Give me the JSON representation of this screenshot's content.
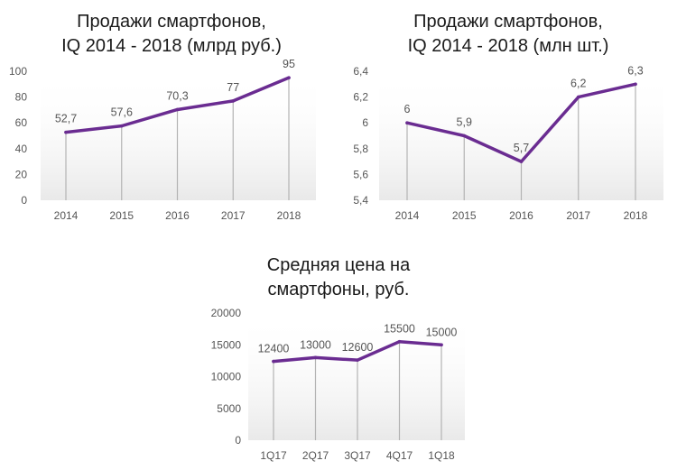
{
  "colors": {
    "line": "#6a2c91",
    "drop_line": "#b3b3b3",
    "shade": "#ececec",
    "text": "#555555",
    "title": "#1a1a1a"
  },
  "chart_data": [
    {
      "type": "line",
      "title_lines": [
        "Продажи смартфонов,",
        "IQ 2014 - 2018 (млрд руб.)"
      ],
      "categories": [
        "2014",
        "2015",
        "2016",
        "2017",
        "2018"
      ],
      "values": [
        52.7,
        57.6,
        70.3,
        77,
        95
      ],
      "data_labels": [
        "52,7",
        "57,6",
        "70,3",
        "77",
        "95"
      ],
      "ylim": [
        0,
        100
      ],
      "yticks": [
        0,
        20,
        40,
        60,
        80,
        100
      ],
      "ytick_labels": [
        "0",
        "20",
        "40",
        "60",
        "80",
        "100"
      ],
      "grid": false,
      "drop_lines": true
    },
    {
      "type": "line",
      "title_lines": [
        "Продажи смартфонов,",
        "IQ 2014 - 2018 (млн шт.)"
      ],
      "categories": [
        "2014",
        "2015",
        "2016",
        "2017",
        "2018"
      ],
      "values": [
        6,
        5.9,
        5.7,
        6.2,
        6.3
      ],
      "data_labels": [
        "6",
        "5,9",
        "5,7",
        "6,2",
        "6,3"
      ],
      "ylim": [
        5.4,
        6.4
      ],
      "yticks": [
        5.4,
        5.6,
        5.8,
        6,
        6.2,
        6.4
      ],
      "ytick_labels": [
        "5,4",
        "5,6",
        "5,8",
        "6",
        "6,2",
        "6,4"
      ],
      "grid": false,
      "drop_lines": true
    },
    {
      "type": "line",
      "title_lines": [
        "Средняя цена на",
        "смартфоны, руб."
      ],
      "categories": [
        "1Q17",
        "2Q17",
        "3Q17",
        "4Q17",
        "1Q18"
      ],
      "values": [
        12400,
        13000,
        12600,
        15500,
        15000
      ],
      "data_labels": [
        "12400",
        "13000",
        "12600",
        "15500",
        "15000"
      ],
      "ylim": [
        0,
        20000
      ],
      "yticks": [
        0,
        5000,
        10000,
        15000,
        20000
      ],
      "ytick_labels": [
        "0",
        "5000",
        "10000",
        "15000",
        "20000"
      ],
      "grid": false,
      "drop_lines": true
    }
  ]
}
